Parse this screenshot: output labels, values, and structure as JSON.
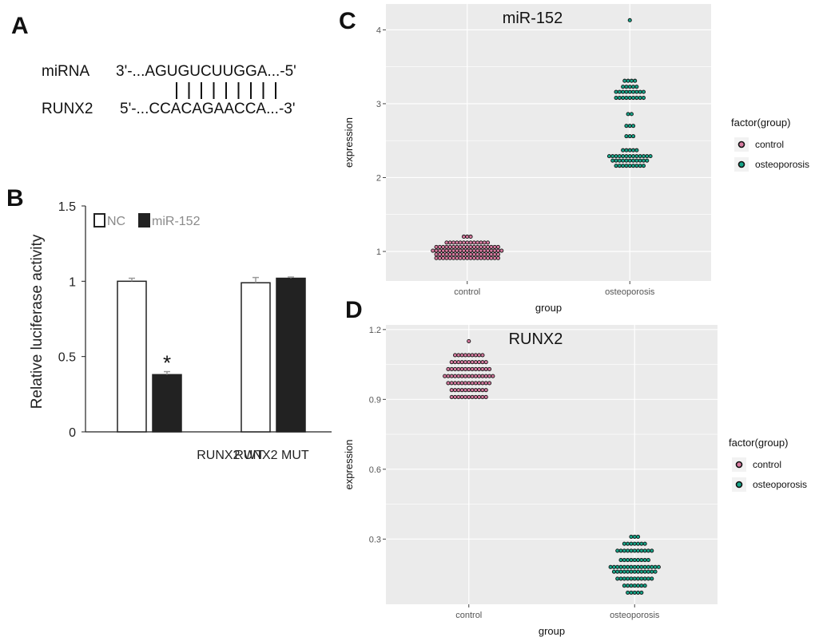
{
  "panels": {
    "a": {
      "letter": "A",
      "mirna_label": "miRNA",
      "mirna_seq": "3'-...AGUGUCUUGGA...-5'",
      "target_label": "RUNX2",
      "target_seq": "5'-...CCACAGAACCA...-3'",
      "pair_bars": 9
    },
    "b": {
      "letter": "B"
    },
    "c": {
      "letter": "C"
    },
    "d": {
      "letter": "D"
    }
  },
  "colors": {
    "control_fill": "#d87ba0",
    "osteo_fill": "#17a589",
    "dot_outline": "#111111",
    "panel_bg": "#ebebeb",
    "grid": "#ffffff",
    "bar_filled": "#222222",
    "error_bar": "#9a9a9a"
  },
  "chart_data": [
    {
      "id": "B",
      "type": "bar",
      "categories": [
        "RUNX2 WT",
        "RUNX2 MUT"
      ],
      "series": [
        {
          "name": "NC",
          "values": [
            1.0,
            0.99
          ],
          "errors": [
            0.02,
            0.035
          ]
        },
        {
          "name": "miR-152",
          "values": [
            0.38,
            1.02
          ],
          "errors": [
            0.02,
            0.008
          ]
        }
      ],
      "ylabel": "Relative luciferase activity",
      "xlabel": "",
      "ylim": [
        0,
        1.5
      ],
      "yticks": [
        0,
        0.5,
        1,
        1.5
      ],
      "ytick_labels": [
        "0",
        "0.5",
        "1",
        "1.5"
      ],
      "annotations": [
        {
          "category": "RUNX2 WT",
          "series": "miR-152",
          "text": "*"
        }
      ],
      "legend": {
        "placement": "top-left",
        "entries": [
          "NC",
          "miR-152"
        ]
      }
    },
    {
      "id": "C",
      "type": "scatter",
      "style": "dotplot",
      "title": "miR-152",
      "xlabel": "group",
      "ylabel": "expression",
      "categories": [
        "control",
        "osteoporosis"
      ],
      "ylim": [
        0.6,
        4.35
      ],
      "yticks": [
        1,
        2,
        3,
        4
      ],
      "ytick_labels": [
        "1",
        "2",
        "3",
        "4"
      ],
      "legend": {
        "title": "factor(group)",
        "entries": [
          "control",
          "osteoporosis"
        ],
        "placement": "right"
      },
      "dot_rows": [
        {
          "group": "control",
          "y": 0.91,
          "n": 19
        },
        {
          "group": "control",
          "y": 0.96,
          "n": 19
        },
        {
          "group": "control",
          "y": 1.01,
          "n": 21
        },
        {
          "group": "control",
          "y": 1.06,
          "n": 19
        },
        {
          "group": "control",
          "y": 1.12,
          "n": 13
        },
        {
          "group": "control",
          "y": 1.2,
          "n": 3
        },
        {
          "group": "osteoporosis",
          "y": 2.16,
          "n": 9
        },
        {
          "group": "osteoporosis",
          "y": 2.23,
          "n": 11
        },
        {
          "group": "osteoporosis",
          "y": 2.29,
          "n": 13
        },
        {
          "group": "osteoporosis",
          "y": 2.37,
          "n": 5
        },
        {
          "group": "osteoporosis",
          "y": 2.56,
          "n": 3
        },
        {
          "group": "osteoporosis",
          "y": 2.7,
          "n": 3
        },
        {
          "group": "osteoporosis",
          "y": 2.86,
          "n": 2
        },
        {
          "group": "osteoporosis",
          "y": 3.08,
          "n": 9
        },
        {
          "group": "osteoporosis",
          "y": 3.16,
          "n": 9
        },
        {
          "group": "osteoporosis",
          "y": 3.23,
          "n": 5
        },
        {
          "group": "osteoporosis",
          "y": 3.31,
          "n": 4
        },
        {
          "group": "osteoporosis",
          "y": 4.13,
          "n": 1
        }
      ]
    },
    {
      "id": "D",
      "type": "scatter",
      "style": "dotplot",
      "title": "RUNX2",
      "xlabel": "group",
      "ylabel": "expression",
      "categories": [
        "control",
        "osteoporosis"
      ],
      "ylim": [
        0.02,
        1.22
      ],
      "yticks": [
        0.3,
        0.6,
        0.9,
        1.2
      ],
      "ytick_labels": [
        "0.3",
        "0.6",
        "0.9",
        "1.2"
      ],
      "legend": {
        "title": "factor(group)",
        "entries": [
          "control",
          "osteoporosis"
        ],
        "placement": "right"
      },
      "dot_rows": [
        {
          "group": "control",
          "y": 1.15,
          "n": 1
        },
        {
          "group": "control",
          "y": 1.09,
          "n": 9
        },
        {
          "group": "control",
          "y": 1.06,
          "n": 11
        },
        {
          "group": "control",
          "y": 1.03,
          "n": 13
        },
        {
          "group": "control",
          "y": 1.0,
          "n": 15
        },
        {
          "group": "control",
          "y": 0.97,
          "n": 13
        },
        {
          "group": "control",
          "y": 0.94,
          "n": 11
        },
        {
          "group": "control",
          "y": 0.91,
          "n": 11
        },
        {
          "group": "osteoporosis",
          "y": 0.31,
          "n": 3
        },
        {
          "group": "osteoporosis",
          "y": 0.28,
          "n": 7
        },
        {
          "group": "osteoporosis",
          "y": 0.25,
          "n": 11
        },
        {
          "group": "osteoporosis",
          "y": 0.21,
          "n": 9
        },
        {
          "group": "osteoporosis",
          "y": 0.18,
          "n": 15
        },
        {
          "group": "osteoporosis",
          "y": 0.16,
          "n": 13
        },
        {
          "group": "osteoporosis",
          "y": 0.13,
          "n": 11
        },
        {
          "group": "osteoporosis",
          "y": 0.1,
          "n": 7
        },
        {
          "group": "osteoporosis",
          "y": 0.07,
          "n": 5
        }
      ]
    }
  ]
}
